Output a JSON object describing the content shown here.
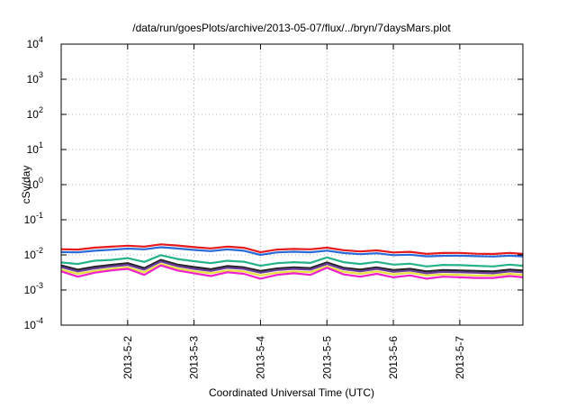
{
  "chart_data": {
    "type": "line",
    "title": "/data/run/goesPlots/archive/2013-05-07/flux/../bryn/7daysMars.plot",
    "xlabel": "Coordinated Universal Time (UTC)",
    "ylabel": "cSv/day",
    "x_range_days": [
      0.0,
      6.95
    ],
    "x_ticks": [
      {
        "label": "2013-5-2",
        "day": 1
      },
      {
        "label": "2013-5-3",
        "day": 2
      },
      {
        "label": "2013-5-4",
        "day": 3
      },
      {
        "label": "2013-5-5",
        "day": 4
      },
      {
        "label": "2013-5-6",
        "day": 5
      },
      {
        "label": "2013-5-7",
        "day": 6
      }
    ],
    "y_scale": "log",
    "y_range": [
      0.0001,
      10000
    ],
    "y_ticks": [
      {
        "base": "10",
        "exp": "-4",
        "value": 0.0001
      },
      {
        "base": "10",
        "exp": "-3",
        "value": 0.001
      },
      {
        "base": "10",
        "exp": "-2",
        "value": 0.01
      },
      {
        "base": "10",
        "exp": "-1",
        "value": 0.1
      },
      {
        "base": "10",
        "exp": "0",
        "value": 1
      },
      {
        "base": "10",
        "exp": "1",
        "value": 10
      },
      {
        "base": "10",
        "exp": "2",
        "value": 100
      },
      {
        "base": "10",
        "exp": "3",
        "value": 1000
      },
      {
        "base": "10",
        "exp": "4",
        "value": 10000
      }
    ],
    "grid": true,
    "legend": "none",
    "x": [
      0.0,
      0.25,
      0.5,
      0.75,
      1.0,
      1.25,
      1.5,
      1.75,
      2.0,
      2.25,
      2.5,
      2.75,
      3.0,
      3.25,
      3.5,
      3.75,
      4.0,
      4.25,
      4.5,
      4.75,
      5.0,
      5.25,
      5.5,
      5.75,
      6.0,
      6.25,
      6.5,
      6.75,
      6.95
    ],
    "series": [
      {
        "color": "#e41a1c",
        "values": [
          0.0145,
          0.0142,
          0.016,
          0.0171,
          0.0183,
          0.0172,
          0.02,
          0.0185,
          0.0166,
          0.0153,
          0.0172,
          0.0159,
          0.0119,
          0.0142,
          0.0148,
          0.0144,
          0.016,
          0.0136,
          0.0125,
          0.0134,
          0.0117,
          0.0122,
          0.0107,
          0.0113,
          0.0114,
          0.0108,
          0.0106,
          0.0114,
          0.0107
        ]
      },
      {
        "color": "#2a6ad8",
        "values": [
          0.012,
          0.0118,
          0.0131,
          0.014,
          0.0151,
          0.0144,
          0.0165,
          0.0152,
          0.0138,
          0.0128,
          0.0143,
          0.0131,
          0.01,
          0.0118,
          0.0123,
          0.0119,
          0.0132,
          0.0113,
          0.0105,
          0.0111,
          0.0098,
          0.0101,
          0.0091,
          0.0094,
          0.0095,
          0.0092,
          0.009,
          0.0095,
          0.0091
        ]
      },
      {
        "color": "#26b38a",
        "values": [
          0.0061,
          0.0055,
          0.0068,
          0.0072,
          0.0081,
          0.0063,
          0.0098,
          0.0076,
          0.0066,
          0.0058,
          0.0068,
          0.0064,
          0.0049,
          0.0058,
          0.0062,
          0.0059,
          0.0085,
          0.0062,
          0.0055,
          0.0063,
          0.0053,
          0.0056,
          0.0047,
          0.0052,
          0.0051,
          0.0049,
          0.0047,
          0.0053,
          0.0049
        ]
      },
      {
        "color": "#222222",
        "values": [
          0.005,
          0.0038,
          0.0046,
          0.0052,
          0.0058,
          0.0042,
          0.0072,
          0.0053,
          0.0045,
          0.0039,
          0.0048,
          0.0044,
          0.0035,
          0.0041,
          0.0044,
          0.0042,
          0.0061,
          0.0043,
          0.0038,
          0.0044,
          0.0037,
          0.004,
          0.0034,
          0.0037,
          0.0036,
          0.0035,
          0.0034,
          0.0038,
          0.0036
        ]
      },
      {
        "color": "#6a3d9a",
        "values": [
          0.0045,
          0.0034,
          0.0041,
          0.0047,
          0.0052,
          0.0038,
          0.0065,
          0.0048,
          0.004,
          0.0035,
          0.0043,
          0.004,
          0.0031,
          0.0037,
          0.004,
          0.0038,
          0.0055,
          0.0039,
          0.0034,
          0.004,
          0.0033,
          0.0036,
          0.003,
          0.0033,
          0.0032,
          0.0031,
          0.003,
          0.0034,
          0.0032
        ]
      },
      {
        "color": "#e8e040",
        "values": [
          0.0038,
          0.0029,
          0.0035,
          0.004,
          0.0044,
          0.0032,
          0.0055,
          0.0041,
          0.0034,
          0.003,
          0.0036,
          0.0034,
          0.0026,
          0.0031,
          0.0034,
          0.0032,
          0.0047,
          0.0033,
          0.0029,
          0.0034,
          0.0028,
          0.0031,
          0.0026,
          0.0028,
          0.0027,
          0.0026,
          0.0026,
          0.0029,
          0.0027
        ]
      },
      {
        "color": "#ee22cc",
        "values": [
          0.0034,
          0.0024,
          0.0031,
          0.0036,
          0.004,
          0.0027,
          0.005,
          0.0036,
          0.003,
          0.0025,
          0.0032,
          0.0029,
          0.0021,
          0.0027,
          0.003,
          0.0027,
          0.0043,
          0.0028,
          0.0024,
          0.0029,
          0.0023,
          0.0026,
          0.0021,
          0.0024,
          0.0023,
          0.0022,
          0.0022,
          0.0025,
          0.0023
        ]
      }
    ]
  }
}
